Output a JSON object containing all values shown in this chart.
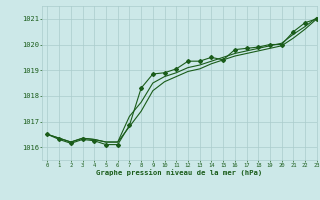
{
  "title": "Graphe pression niveau de la mer (hPa)",
  "bg_color": "#cce8e8",
  "grid_color": "#aacccc",
  "line_color": "#1a5c1a",
  "xlim": [
    -0.5,
    23
  ],
  "ylim": [
    1015.5,
    1021.5
  ],
  "yticks": [
    1016,
    1017,
    1018,
    1019,
    1020,
    1021
  ],
  "xticks": [
    0,
    1,
    2,
    3,
    4,
    5,
    6,
    7,
    8,
    9,
    10,
    11,
    12,
    13,
    14,
    15,
    16,
    17,
    18,
    19,
    20,
    21,
    22,
    23
  ],
  "series_main": [
    1016.5,
    1016.3,
    1016.15,
    1016.3,
    1016.25,
    1016.1,
    1016.1,
    1016.85,
    1018.3,
    1018.85,
    1018.9,
    1019.05,
    1019.35,
    1019.35,
    1019.5,
    1019.4,
    1019.8,
    1019.85,
    1019.9,
    1020.0,
    1020.0,
    1020.5,
    1020.85,
    1021.0
  ],
  "series_upper": [
    1016.5,
    1016.35,
    1016.2,
    1016.35,
    1016.3,
    1016.2,
    1016.2,
    1017.2,
    1017.75,
    1018.5,
    1018.75,
    1018.9,
    1019.1,
    1019.2,
    1019.35,
    1019.5,
    1019.65,
    1019.75,
    1019.85,
    1019.95,
    1020.05,
    1020.4,
    1020.7,
    1021.05
  ],
  "series_lower": [
    1016.5,
    1016.35,
    1016.2,
    1016.35,
    1016.3,
    1016.2,
    1016.2,
    1016.8,
    1017.4,
    1018.2,
    1018.55,
    1018.75,
    1018.95,
    1019.05,
    1019.25,
    1019.4,
    1019.55,
    1019.65,
    1019.75,
    1019.85,
    1019.95,
    1020.25,
    1020.6,
    1021.0
  ]
}
